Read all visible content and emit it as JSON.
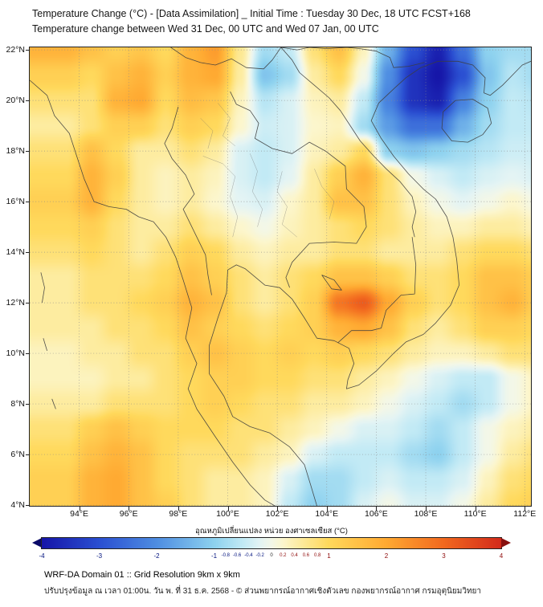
{
  "title": {
    "line1": "Temperature Change (°C) - [Data Assimilation] _ Initial Time : Tuesday 30 Dec, 18 UTC FCST+168",
    "line2": "Temperature change between Wed 31 Dec, 00 UTC and Wed 07 Jan, 00 UTC"
  },
  "footer": {
    "line1": "WRF-DA Domain 01 :: Grid Resolution 9km x 9km",
    "line2": "ปรับปรุงข้อมูล ณ เวลา 01:00น. วัน พ. ที่ 31 ธ.ค. 2568 - © ส่วนพยากรณ์อากาศเชิงตัวเลข กองพยากรณ์อากาศ กรมอุตุนิยมวิทยา"
  },
  "chart_data": {
    "type": "heatmap",
    "title": "Temperature change (°C) between Wed 31 Dec 00 UTC and Wed 07 Jan 00 UTC",
    "colorbar_label": "อุณหภูมิเปลี่ยนแปลง หน่วย องศาเซลเซียส (°C)",
    "extent": {
      "lon": [
        92.0,
        112.25
      ],
      "lat": [
        3.97,
        22.1
      ]
    },
    "x_axis": {
      "suffix": "°E",
      "ticks": [
        94,
        96,
        98,
        100,
        102,
        104,
        106,
        108,
        110,
        112
      ]
    },
    "y_axis": {
      "suffix": "°N",
      "ticks": [
        22,
        20,
        18,
        16,
        14,
        12,
        10,
        8,
        6,
        4
      ]
    },
    "colorbar": {
      "range": [
        -4,
        4
      ],
      "major_ticks": [
        -4,
        -3,
        -2,
        -1,
        1,
        2,
        3,
        4
      ],
      "minor_ticks": [
        -0.8,
        -0.6,
        -0.4,
        -0.2,
        0,
        0.2,
        0.4,
        0.6,
        0.8
      ],
      "tick_color_negative": "#00127e",
      "tick_color_positive": "#8f0b0b",
      "tick_color_zero": "#222222"
    },
    "color_scale": [
      [
        -4.6,
        "#08085c"
      ],
      [
        -4.0,
        "#1616a8"
      ],
      [
        -3.0,
        "#2b50d2"
      ],
      [
        -2.0,
        "#4f8ee2"
      ],
      [
        -1.0,
        "#8ed2ef"
      ],
      [
        -0.5,
        "#c2eaf5"
      ],
      [
        -0.2,
        "#e4f4f4"
      ],
      [
        0.0,
        "#f3f7e8"
      ],
      [
        0.2,
        "#fcf6cd"
      ],
      [
        0.5,
        "#fdeca0"
      ],
      [
        1.0,
        "#ffd95c"
      ],
      [
        2.0,
        "#ffaa32"
      ],
      [
        3.0,
        "#f2691f"
      ],
      [
        4.0,
        "#d32b1b"
      ],
      [
        4.6,
        "#7a0d0d"
      ]
    ],
    "grid": {
      "lon_start": 93.5,
      "lon_step": 1.0,
      "lat_start": 22.0,
      "lat_step": -1.0,
      "values": [
        [
          1.8,
          1.5,
          1.2,
          1.4,
          1.0,
          1.8,
          2.2,
          0.6,
          -0.8,
          -0.5,
          0.8,
          1.5,
          0.3,
          -1.5,
          -3.0,
          -3.8,
          -2.5,
          -1.0,
          -0.8,
          -0.8
        ],
        [
          1.2,
          1.0,
          1.5,
          1.8,
          1.2,
          1.8,
          2.0,
          0.5,
          -1.2,
          -0.8,
          0.5,
          1.0,
          0.0,
          -2.0,
          -3.5,
          -4.0,
          -3.0,
          -1.2,
          -0.6,
          -0.8
        ],
        [
          0.8,
          0.8,
          1.8,
          2.0,
          1.0,
          1.6,
          1.4,
          0.3,
          -0.6,
          -0.3,
          0.3,
          0.5,
          -0.5,
          -2.2,
          -3.5,
          -3.8,
          -2.2,
          -1.0,
          -0.5,
          -0.6
        ],
        [
          0.5,
          0.8,
          1.2,
          1.2,
          0.8,
          1.2,
          1.0,
          0.2,
          -0.4,
          -0.3,
          0.2,
          0.3,
          -0.8,
          -1.8,
          -2.5,
          -2.5,
          -1.5,
          -0.8,
          -0.5,
          -0.5
        ],
        [
          0.8,
          1.5,
          1.0,
          0.5,
          0.5,
          0.8,
          0.5,
          -0.3,
          -0.5,
          -0.3,
          0.3,
          0.5,
          1.0,
          -1.0,
          -1.2,
          -1.0,
          -0.8,
          -0.6,
          -0.4,
          -0.4
        ],
        [
          1.0,
          1.8,
          1.2,
          0.5,
          0.3,
          0.5,
          0.3,
          -0.3,
          -0.5,
          -0.2,
          0.5,
          1.2,
          1.8,
          0.8,
          0.0,
          -0.3,
          -0.5,
          -0.3,
          -0.2,
          -0.3
        ],
        [
          1.2,
          1.8,
          1.0,
          0.5,
          0.3,
          0.5,
          0.2,
          -0.2,
          -0.3,
          0.2,
          0.5,
          1.5,
          1.5,
          0.8,
          0.3,
          0.0,
          -0.2,
          0.0,
          0.2,
          0.0
        ],
        [
          1.0,
          1.2,
          0.8,
          0.5,
          0.5,
          0.8,
          0.5,
          0.2,
          0.0,
          0.3,
          0.5,
          0.8,
          1.0,
          0.8,
          0.5,
          0.3,
          0.3,
          0.5,
          0.5,
          0.3
        ],
        [
          0.8,
          1.0,
          0.8,
          0.5,
          0.8,
          1.2,
          1.0,
          0.5,
          0.3,
          0.5,
          0.5,
          0.8,
          0.8,
          0.5,
          0.5,
          0.5,
          0.8,
          1.0,
          1.0,
          0.8
        ],
        [
          0.5,
          0.8,
          0.8,
          0.8,
          1.0,
          1.5,
          1.2,
          0.8,
          0.5,
          0.8,
          1.0,
          1.5,
          1.5,
          1.2,
          0.8,
          0.8,
          1.0,
          1.5,
          1.5,
          1.2
        ],
        [
          0.5,
          0.8,
          0.8,
          1.0,
          1.2,
          1.8,
          1.5,
          0.8,
          0.5,
          0.8,
          1.2,
          2.8,
          3.2,
          2.0,
          1.2,
          0.8,
          1.0,
          1.5,
          1.8,
          1.2
        ],
        [
          0.5,
          0.5,
          0.8,
          0.8,
          1.0,
          1.5,
          1.2,
          1.0,
          0.8,
          1.0,
          1.2,
          1.8,
          2.0,
          1.5,
          0.8,
          0.5,
          0.8,
          1.2,
          1.2,
          1.0
        ],
        [
          0.3,
          0.5,
          0.5,
          0.8,
          0.8,
          1.2,
          1.5,
          1.2,
          1.0,
          1.2,
          1.0,
          1.2,
          1.0,
          0.8,
          0.5,
          0.3,
          0.3,
          0.5,
          0.8,
          0.8
        ],
        [
          0.3,
          0.3,
          0.5,
          0.5,
          0.8,
          1.0,
          1.2,
          1.2,
          1.0,
          1.0,
          0.8,
          0.8,
          0.5,
          0.3,
          0.0,
          -0.3,
          -0.5,
          -0.5,
          0.0,
          0.3
        ],
        [
          0.5,
          0.5,
          0.8,
          0.8,
          0.8,
          1.0,
          1.2,
          1.0,
          0.8,
          0.8,
          0.5,
          0.5,
          0.3,
          0.0,
          -0.3,
          -0.5,
          -0.8,
          -0.5,
          0.0,
          0.3
        ],
        [
          0.8,
          1.2,
          1.5,
          1.2,
          1.0,
          1.0,
          1.0,
          0.8,
          0.8,
          0.5,
          0.3,
          0.0,
          -0.3,
          -0.3,
          -0.5,
          -0.8,
          -0.5,
          0.0,
          0.3,
          0.5
        ],
        [
          1.0,
          1.5,
          1.8,
          1.5,
          1.0,
          0.8,
          0.8,
          0.8,
          0.5,
          0.3,
          -0.3,
          -0.5,
          -0.5,
          -0.5,
          -0.8,
          -1.0,
          -0.5,
          0.0,
          0.5,
          0.8
        ],
        [
          1.2,
          1.8,
          2.0,
          1.5,
          1.0,
          0.8,
          0.5,
          0.5,
          0.3,
          -0.3,
          -0.8,
          -0.8,
          -0.5,
          -0.3,
          -0.5,
          -0.5,
          -0.3,
          0.3,
          0.8,
          1.0
        ],
        [
          1.2,
          1.8,
          2.0,
          1.5,
          1.2,
          0.8,
          0.5,
          0.5,
          0.3,
          -0.5,
          -1.0,
          -0.8,
          -0.3,
          0.0,
          -0.3,
          -0.3,
          0.0,
          0.5,
          1.0,
          1.2
        ]
      ]
    }
  }
}
